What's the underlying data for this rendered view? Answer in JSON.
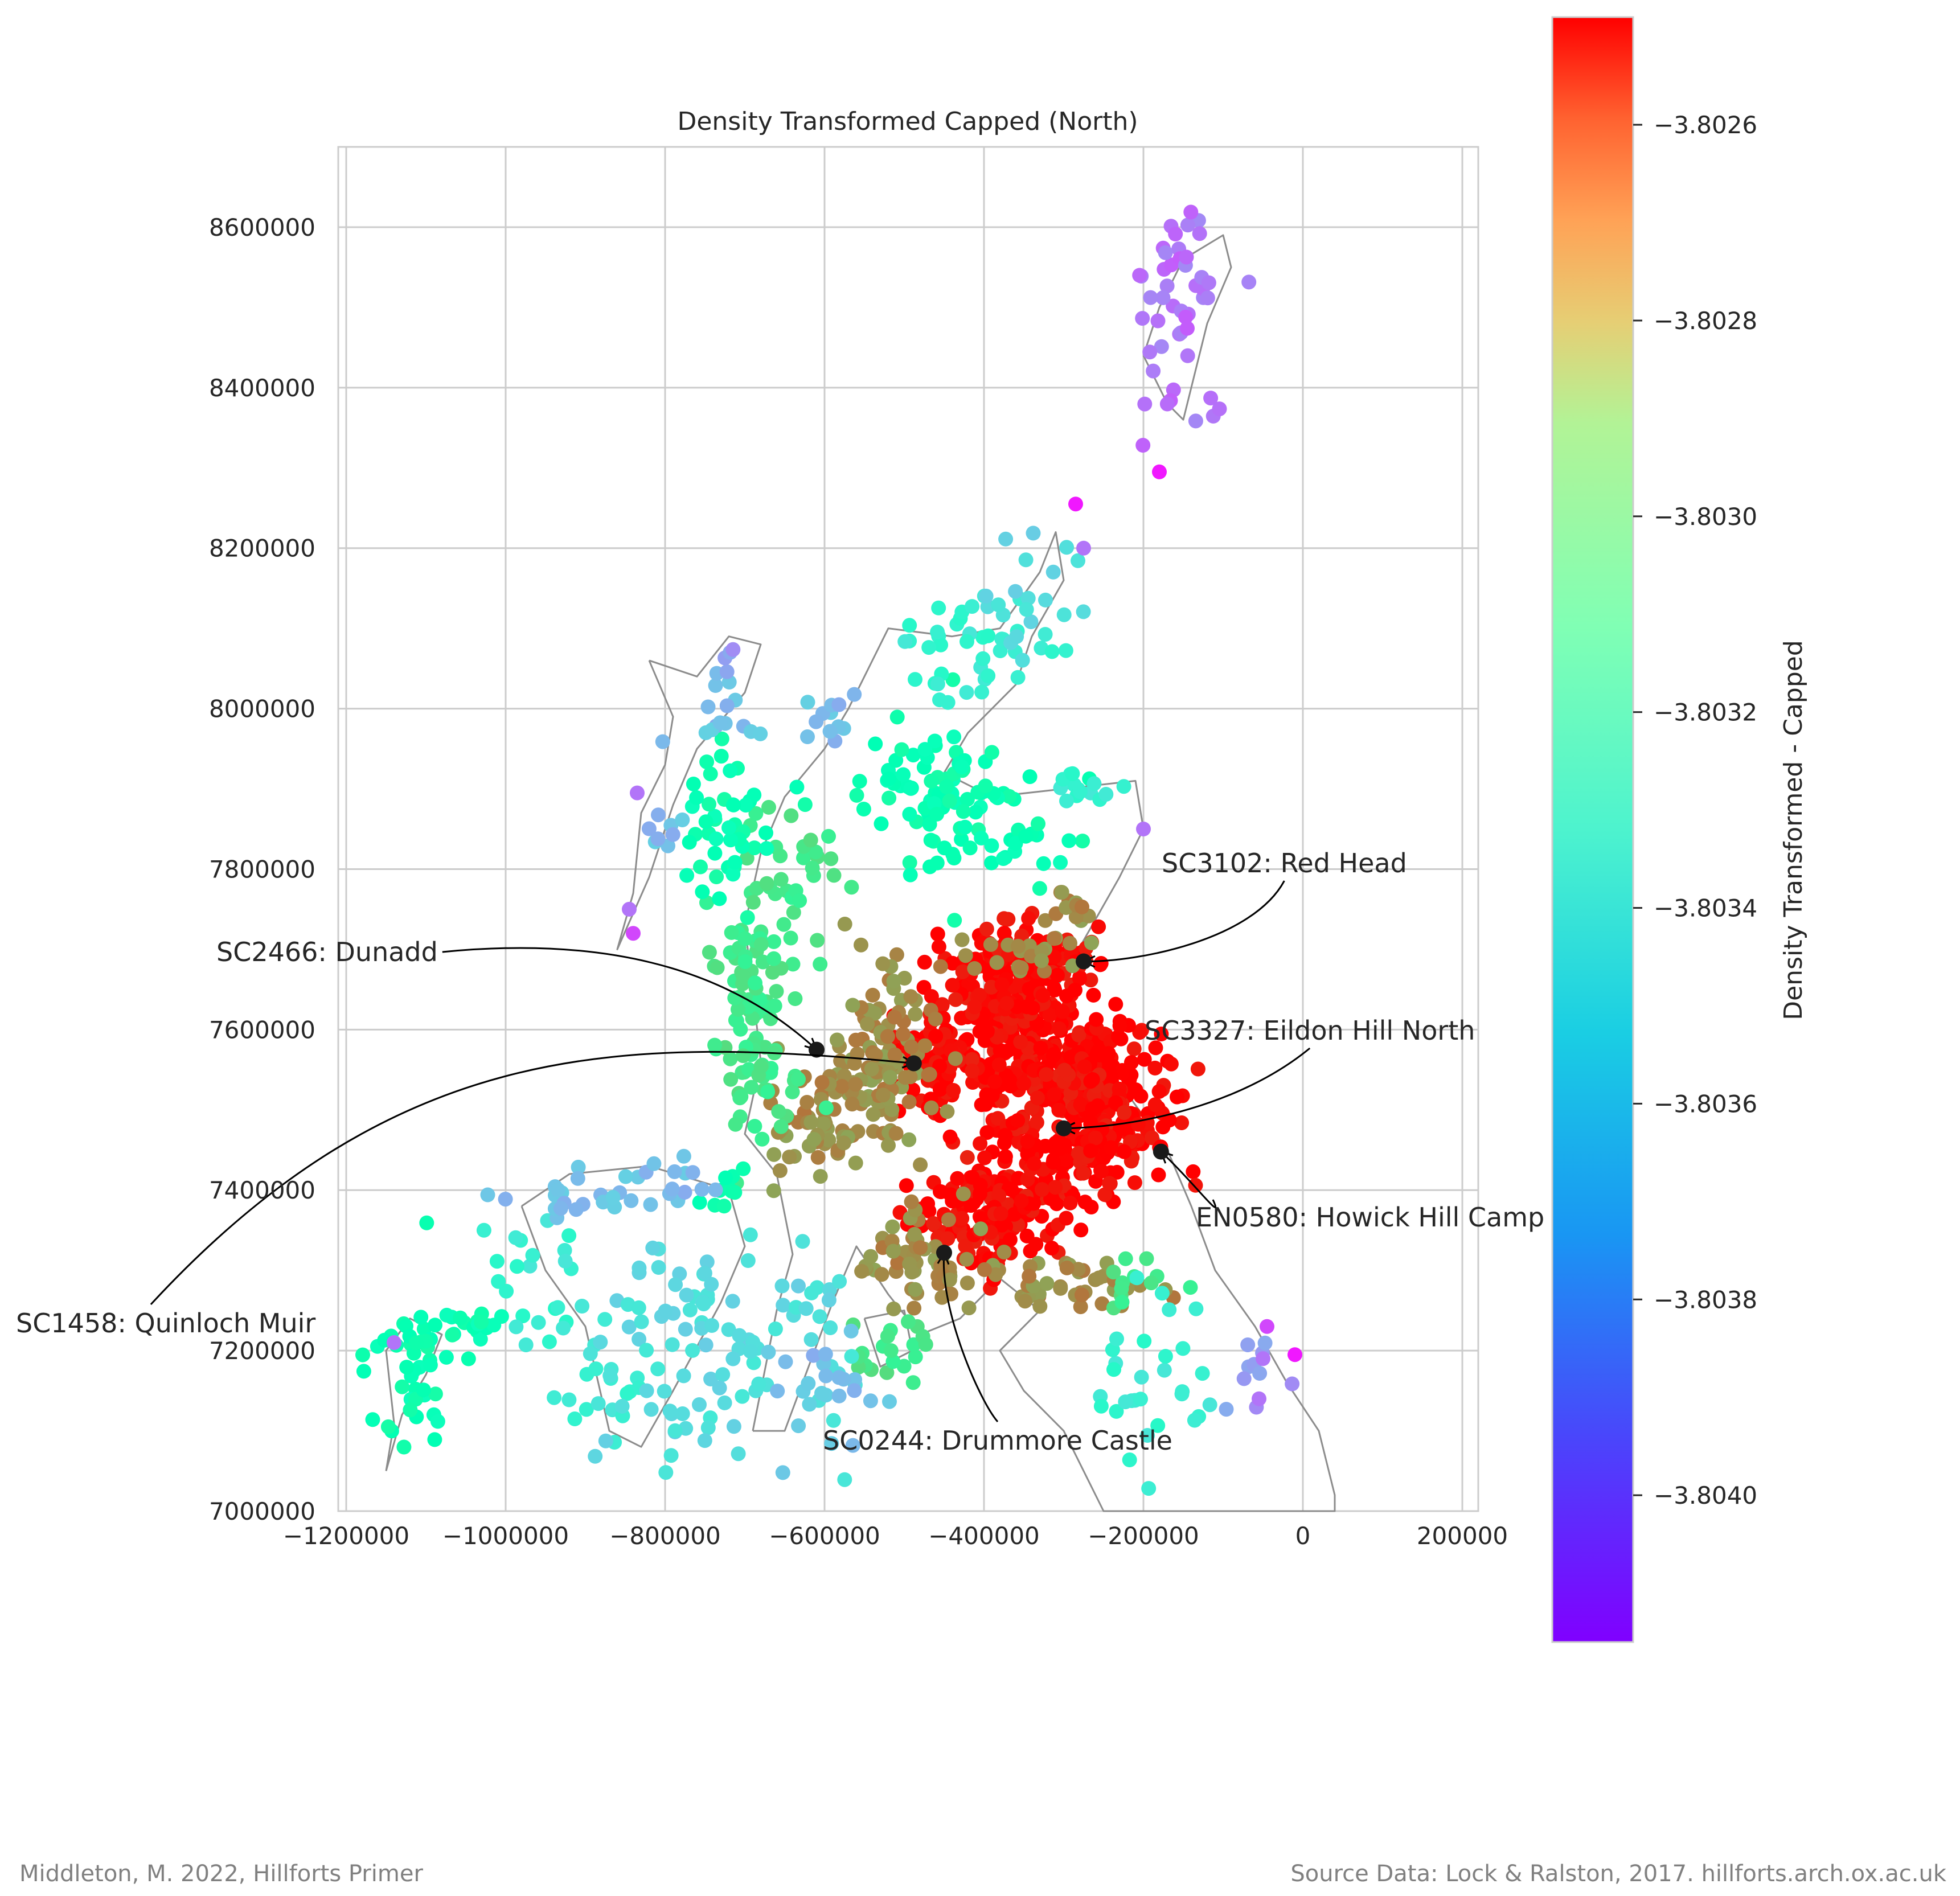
{
  "chart_data": {
    "type": "scatter",
    "title": "Density Transformed   Capped (North)",
    "xlabel": "",
    "ylabel": "",
    "xlim": [
      -1210000,
      220000
    ],
    "ylim": [
      7000000,
      8700000
    ],
    "x_ticks": [
      -1200000,
      -1000000,
      -800000,
      -600000,
      -400000,
      -200000,
      0,
      200000
    ],
    "x_tick_labels": [
      "−1200000",
      "−1000000",
      "−800000",
      "−600000",
      "−400000",
      "−200000",
      "0",
      "200000"
    ],
    "y_ticks": [
      7000000,
      7200000,
      7400000,
      7600000,
      7800000,
      8000000,
      8200000,
      8400000,
      8600000
    ],
    "y_tick_labels": [
      "7000000",
      "7200000",
      "7400000",
      "7600000",
      "7800000",
      "8000000",
      "8200000",
      "8400000",
      "8600000"
    ],
    "grid": true,
    "colormap": "rainbow",
    "colorbar": {
      "label": "Density Transformed - Capped",
      "vmin": -3.80415,
      "vmax": -3.80249,
      "ticks": [
        -3.8026,
        -3.8028,
        -3.803,
        -3.8032,
        -3.8034,
        -3.8036,
        -3.8038,
        -3.804
      ],
      "tick_labels": [
        "−3.8026",
        "−3.8028",
        "−3.8030",
        "−3.8032",
        "−3.8034",
        "−3.8036",
        "−3.8038",
        "−3.8040"
      ]
    },
    "clusters": [
      {
        "x": -330000,
        "y": 7560000,
        "sx": 60000,
        "sy": 45000,
        "n": 260,
        "value": -3.8025
      },
      {
        "x": -250000,
        "y": 7500000,
        "sx": 45000,
        "sy": 45000,
        "n": 180,
        "value": -3.8025
      },
      {
        "x": -350000,
        "y": 7670000,
        "sx": 50000,
        "sy": 35000,
        "n": 180,
        "value": -3.8025
      },
      {
        "x": -390000,
        "y": 7370000,
        "sx": 45000,
        "sy": 40000,
        "n": 160,
        "value": -3.8025
      },
      {
        "x": -460000,
        "y": 7570000,
        "sx": 25000,
        "sy": 30000,
        "n": 70,
        "value": -3.8025
      },
      {
        "x": -300000,
        "y": 7430000,
        "sx": 40000,
        "sy": 30000,
        "n": 70,
        "value": -3.8025
      },
      {
        "x": -530000,
        "y": 7560000,
        "sx": 30000,
        "sy": 60000,
        "n": 110,
        "value": -3.8028
      },
      {
        "x": -600000,
        "y": 7490000,
        "sx": 40000,
        "sy": 45000,
        "n": 60,
        "value": -3.8028
      },
      {
        "x": -470000,
        "y": 7310000,
        "sx": 45000,
        "sy": 30000,
        "n": 60,
        "value": -3.8028
      },
      {
        "x": -280000,
        "y": 7280000,
        "sx": 45000,
        "sy": 20000,
        "n": 40,
        "value": -3.8028
      },
      {
        "x": -360000,
        "y": 7690000,
        "sx": 40000,
        "sy": 15000,
        "n": 20,
        "value": -3.8028
      },
      {
        "x": -290000,
        "y": 7740000,
        "sx": 20000,
        "sy": 20000,
        "n": 15,
        "value": -3.8028
      },
      {
        "x": -680000,
        "y": 7560000,
        "sx": 30000,
        "sy": 70000,
        "n": 60,
        "value": -3.8031
      },
      {
        "x": -700000,
        "y": 7700000,
        "sx": 25000,
        "sy": 50000,
        "n": 40,
        "value": -3.8031
      },
      {
        "x": -640000,
        "y": 7800000,
        "sx": 30000,
        "sy": 40000,
        "n": 30,
        "value": -3.8031
      },
      {
        "x": -210000,
        "y": 7290000,
        "sx": 30000,
        "sy": 30000,
        "n": 12,
        "value": -3.8031
      },
      {
        "x": -520000,
        "y": 7200000,
        "sx": 25000,
        "sy": 25000,
        "n": 20,
        "value": -3.8031
      },
      {
        "x": -720000,
        "y": 7840000,
        "sx": 25000,
        "sy": 50000,
        "n": 45,
        "value": -3.8033
      },
      {
        "x": -500000,
        "y": 7920000,
        "sx": 60000,
        "sy": 40000,
        "n": 40,
        "value": -3.8033
      },
      {
        "x": -430000,
        "y": 7870000,
        "sx": 35000,
        "sy": 45000,
        "n": 50,
        "value": -3.8033
      },
      {
        "x": -340000,
        "y": 7830000,
        "sx": 60000,
        "sy": 25000,
        "n": 18,
        "value": -3.8033
      },
      {
        "x": -720000,
        "y": 7400000,
        "sx": 20000,
        "sy": 20000,
        "n": 10,
        "value": -3.8033
      },
      {
        "x": -1110000,
        "y": 7180000,
        "sx": 30000,
        "sy": 50000,
        "n": 45,
        "value": -3.8033
      },
      {
        "x": -1050000,
        "y": 7230000,
        "sx": 30000,
        "sy": 10000,
        "n": 18,
        "value": -3.8033
      },
      {
        "x": -270000,
        "y": 7900000,
        "sx": 25000,
        "sy": 8000,
        "n": 14,
        "value": -3.8035
      },
      {
        "x": -960000,
        "y": 7290000,
        "sx": 30000,
        "sy": 40000,
        "n": 20,
        "value": -3.8035
      },
      {
        "x": -880000,
        "y": 7160000,
        "sx": 40000,
        "sy": 40000,
        "n": 20,
        "value": -3.8035
      },
      {
        "x": -200000,
        "y": 7160000,
        "sx": 45000,
        "sy": 60000,
        "n": 30,
        "value": -3.8035
      },
      {
        "x": -420000,
        "y": 8070000,
        "sx": 60000,
        "sy": 40000,
        "n": 40,
        "value": -3.8035
      },
      {
        "x": -340000,
        "y": 8150000,
        "sx": 30000,
        "sy": 50000,
        "n": 20,
        "value": -3.8036
      },
      {
        "x": -780000,
        "y": 7260000,
        "sx": 60000,
        "sy": 50000,
        "n": 45,
        "value": -3.8036
      },
      {
        "x": -640000,
        "y": 7220000,
        "sx": 50000,
        "sy": 70000,
        "n": 40,
        "value": -3.8036
      },
      {
        "x": -800000,
        "y": 7130000,
        "sx": 50000,
        "sy": 40000,
        "n": 25,
        "value": -3.8036
      },
      {
        "x": -880000,
        "y": 7390000,
        "sx": 60000,
        "sy": 15000,
        "n": 25,
        "value": -3.8037
      },
      {
        "x": -780000,
        "y": 7410000,
        "sx": 30000,
        "sy": 20000,
        "n": 12,
        "value": -3.8037
      },
      {
        "x": -600000,
        "y": 7140000,
        "sx": 30000,
        "sy": 50000,
        "n": 20,
        "value": -3.8037
      },
      {
        "x": -750000,
        "y": 8010000,
        "sx": 30000,
        "sy": 30000,
        "n": 15,
        "value": -3.8037
      },
      {
        "x": -590000,
        "y": 7990000,
        "sx": 20000,
        "sy": 30000,
        "n": 12,
        "value": -3.8037
      },
      {
        "x": -800000,
        "y": 7860000,
        "sx": 15000,
        "sy": 20000,
        "n": 8,
        "value": -3.8037
      },
      {
        "x": -60000,
        "y": 7160000,
        "sx": 20000,
        "sy": 30000,
        "n": 10,
        "value": -3.8038
      },
      {
        "x": -720000,
        "y": 8060000,
        "sx": 10000,
        "sy": 10000,
        "n": 4,
        "value": -3.8038
      },
      {
        "x": -160000,
        "y": 8470000,
        "sx": 30000,
        "sy": 60000,
        "n": 30,
        "value": -3.8039
      },
      {
        "x": -130000,
        "y": 8540000,
        "sx": 30000,
        "sy": 30000,
        "n": 18,
        "value": -3.8039
      }
    ],
    "points": [
      {
        "x": -55000,
        "y": 7140000,
        "value": -3.8039
      },
      {
        "x": -50000,
        "y": 7190000,
        "value": -3.8039
      },
      {
        "x": -45000,
        "y": 7230000,
        "value": -3.804
      },
      {
        "x": -10000,
        "y": 7195000,
        "value": -3.8041
      },
      {
        "x": -285000,
        "y": 8255000,
        "value": -3.8041
      },
      {
        "x": -180000,
        "y": 8295000,
        "value": -3.8041
      },
      {
        "x": -1140000,
        "y": 7210000,
        "value": -3.8039
      },
      {
        "x": -840000,
        "y": 7720000,
        "value": -3.804
      },
      {
        "x": -845000,
        "y": 7750000,
        "value": -3.8039
      },
      {
        "x": -835000,
        "y": 7895000,
        "value": -3.8039
      },
      {
        "x": -200000,
        "y": 7850000,
        "value": -3.8039
      },
      {
        "x": -275000,
        "y": 8200000,
        "value": -3.8039
      }
    ],
    "annotations": [
      {
        "label": "SC3102: Red Head",
        "x": -275000,
        "y": 7685000
      },
      {
        "label": "SC2466: Dunadd",
        "x": -610000,
        "y": 7575000
      },
      {
        "label": "SC1458: Quinloch Muir",
        "x": -488000,
        "y": 7558000
      },
      {
        "label": "SC3327: Eildon Hill North",
        "x": -300000,
        "y": 7477000
      },
      {
        "label": "EN0580: Howick Hill Camp",
        "x": -178000,
        "y": 7448000
      },
      {
        "label": "SC0244: Drummore Castle",
        "x": -450000,
        "y": 7322000
      }
    ]
  },
  "footer": {
    "left": "Middleton, M. 2022, Hillforts Primer",
    "right": "Source Data: Lock & Ralston, 2017. hillforts.arch.ox.ac.uk"
  }
}
